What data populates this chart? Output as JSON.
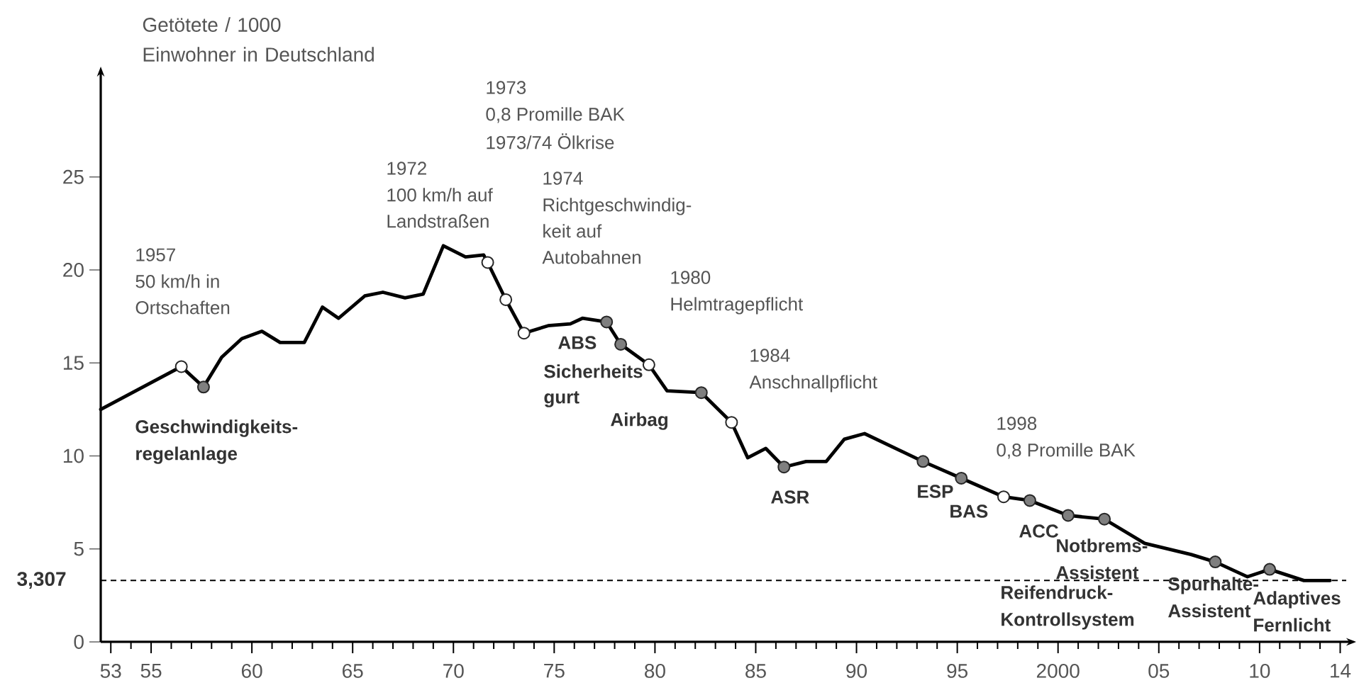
{
  "chart_data": {
    "type": "line",
    "ylabel": "Getötete / 1000 Einwohner in Deutschland",
    "xlim": [
      1952.5,
      2014.3
    ],
    "ylim": [
      0,
      30.4
    ],
    "xticks": [
      {
        "value": 1953,
        "label": "53"
      },
      {
        "value": 1954,
        "label": null
      },
      {
        "value": 1955,
        "label": "55"
      },
      {
        "value": 1956,
        "label": null
      },
      {
        "value": 1957,
        "label": null
      },
      {
        "value": 1958,
        "label": null
      },
      {
        "value": 1959,
        "label": null
      },
      {
        "value": 1960,
        "label": "60"
      },
      {
        "value": 1961,
        "label": null
      },
      {
        "value": 1962,
        "label": null
      },
      {
        "value": 1963,
        "label": null
      },
      {
        "value": 1964,
        "label": null
      },
      {
        "value": 1965,
        "label": "65"
      },
      {
        "value": 1966,
        "label": null
      },
      {
        "value": 1967,
        "label": null
      },
      {
        "value": 1968,
        "label": null
      },
      {
        "value": 1969,
        "label": null
      },
      {
        "value": 1970,
        "label": "70"
      },
      {
        "value": 1971,
        "label": null
      },
      {
        "value": 1972,
        "label": null
      },
      {
        "value": 1973,
        "label": null
      },
      {
        "value": 1974,
        "label": null
      },
      {
        "value": 1975,
        "label": "75"
      },
      {
        "value": 1976,
        "label": null
      },
      {
        "value": 1977,
        "label": null
      },
      {
        "value": 1978,
        "label": null
      },
      {
        "value": 1979,
        "label": null
      },
      {
        "value": 1980,
        "label": "80"
      },
      {
        "value": 1981,
        "label": null
      },
      {
        "value": 1982,
        "label": null
      },
      {
        "value": 1983,
        "label": null
      },
      {
        "value": 1984,
        "label": null
      },
      {
        "value": 1985,
        "label": "85"
      },
      {
        "value": 1986,
        "label": null
      },
      {
        "value": 1987,
        "label": null
      },
      {
        "value": 1988,
        "label": null
      },
      {
        "value": 1989,
        "label": null
      },
      {
        "value": 1990,
        "label": "90"
      },
      {
        "value": 1991,
        "label": null
      },
      {
        "value": 1992,
        "label": null
      },
      {
        "value": 1993,
        "label": null
      },
      {
        "value": 1994,
        "label": null
      },
      {
        "value": 1995,
        "label": "95"
      },
      {
        "value": 1996,
        "label": null
      },
      {
        "value": 1997,
        "label": null
      },
      {
        "value": 1998,
        "label": null
      },
      {
        "value": 1999,
        "label": null
      },
      2000,
      {
        "value": 2001,
        "label": null
      },
      {
        "value": 2002,
        "label": null
      },
      {
        "value": 2003,
        "label": null
      },
      {
        "value": 2004,
        "label": null
      },
      {
        "value": 2005,
        "label": "05"
      },
      {
        "value": 2006,
        "label": null
      },
      {
        "value": 2007,
        "label": null
      },
      {
        "value": 2008,
        "label": null
      },
      {
        "value": 2009,
        "label": null
      },
      {
        "value": 2010,
        "label": "10"
      },
      {
        "value": 2011,
        "label": null
      },
      {
        "value": 2012,
        "label": null
      },
      {
        "value": 2013,
        "label": null
      },
      {
        "value": 2014,
        "label": "14"
      }
    ],
    "yticks": [
      0,
      5,
      10,
      15,
      20,
      25
    ],
    "line_style": "solid",
    "series": [
      {
        "color": "#000000",
        "x": [
          1952.5,
          1956.5,
          1957.6,
          1958.5,
          1959.5,
          1960.5,
          1961.4,
          1962.6,
          1963.5,
          1964.3,
          1965.6,
          1966.5,
          1967.6,
          1968.5,
          1969.5,
          1970.6,
          1971.5,
          1971.7,
          1972.6,
          1973.5,
          1974.7,
          1975.8,
          1976.4,
          1977.6,
          1978.3,
          1979.7,
          1980.6,
          1982.3,
          1983.8,
          1984.6,
          1985.5,
          1986.4,
          1987.5,
          1988.5,
          1989.4,
          1990.4,
          1993.3,
          1995.2,
          1997.3,
          1998.6,
          2000.5,
          2002.3,
          2004.3,
          2006.6,
          2007.8,
          2009.4,
          2010.5,
          2012.2,
          2013.5
        ],
        "values": [
          12.5,
          14.8,
          13.7,
          15.3,
          16.3,
          16.7,
          16.1,
          16.1,
          18.0,
          17.4,
          18.6,
          18.8,
          18.5,
          18.7,
          21.3,
          20.7,
          20.8,
          20.4,
          18.4,
          16.6,
          17.0,
          17.1,
          17.4,
          17.2,
          16.0,
          14.9,
          13.5,
          13.4,
          11.8,
          9.9,
          10.4,
          9.4,
          9.7,
          9.7,
          10.9,
          11.2,
          9.7,
          8.8,
          7.8,
          7.6,
          6.8,
          6.6,
          5.3,
          4.7,
          4.3,
          3.5,
          3.9,
          3.3,
          3.3
        ]
      },
      {
        "type": "scatter",
        "marker": "circle",
        "color": "#ffffff",
        "x": [
          1956.5,
          1971.7,
          1972.6,
          1973.5,
          1979.7,
          1983.8,
          1997.3
        ],
        "values": [
          14.8,
          20.4,
          18.4,
          16.6,
          14.9,
          11.8,
          7.8
        ]
      },
      {
        "type": "scatter",
        "marker": "circle",
        "color": "#7f7f7f",
        "x": [
          1957.6,
          1977.6,
          1978.3,
          1982.3,
          1986.4,
          1993.3,
          1995.2,
          1998.6,
          2000.5,
          2002.3,
          2007.8,
          2010.5
        ],
        "values": [
          13.7,
          17.2,
          16.0,
          13.4,
          9.4,
          9.7,
          8.8,
          7.6,
          6.8,
          6.6,
          4.3,
          3.9
        ]
      }
    ],
    "ref_lines": [
      {
        "axis": "y",
        "value": 3.307,
        "label": "3,307",
        "line_style": "dashed",
        "color": "#000000"
      }
    ],
    "annotations": [
      "1957",
      "50 km/h in",
      "Ortschaften",
      "Geschwindigkeits-",
      "regelanlage",
      "1972",
      "100 km/h auf",
      "Landstraßen",
      "1973",
      "0,8 Promille BAK",
      "1973/74 Ölkrise",
      "1974",
      "Richtgeschwindig-",
      "keit auf",
      "Autobahnen",
      "ABS",
      "Sicherheits",
      "gurt",
      "1980",
      "Helmtragepflicht",
      "Airbag",
      "1984",
      "Anschnallpflicht",
      "ASR",
      "ESP",
      "BAS",
      "1998",
      "0,8 Promille BAK",
      "ACC",
      "Notbrems-",
      "Assistent",
      "Reifendruck-",
      "Kontrollsystem",
      "Spurhalte-",
      "Assistent",
      "Adaptives",
      "Fernlicht"
    ]
  }
}
